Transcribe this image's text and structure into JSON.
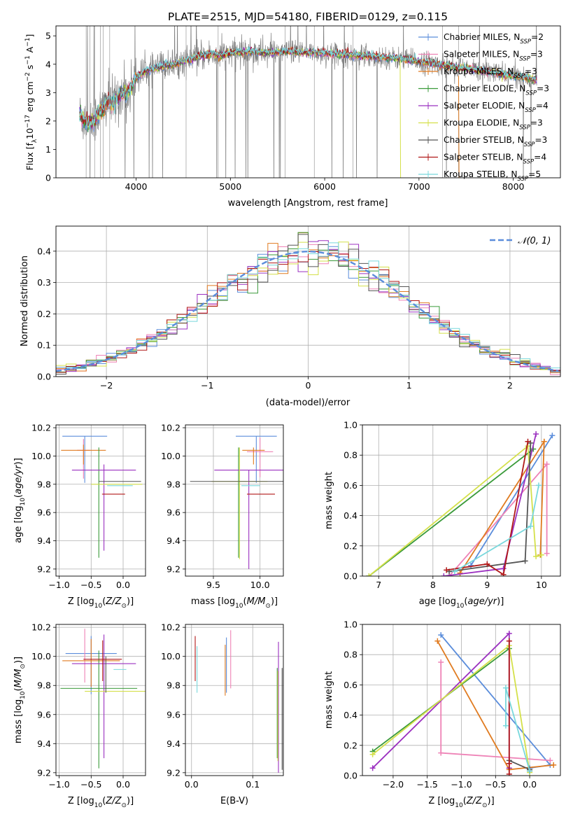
{
  "figure_title": "PLATE=2515, MJD=54180, FIBERID=0129, z=0.115",
  "models": [
    {
      "name": "Chabrier MILES",
      "nssp": "2",
      "color": "#5b8ddb"
    },
    {
      "name": "Salpeter MILES",
      "nssp": "3",
      "color": "#ee82b6"
    },
    {
      "name": "Kroupa MILES",
      "nssp": "3",
      "color": "#e07b20"
    },
    {
      "name": "Chabrier ELODIE",
      "nssp": "3",
      "color": "#3a9a3a"
    },
    {
      "name": "Salpeter ELODIE",
      "nssp": "4",
      "color": "#9b30c0"
    },
    {
      "name": "Kroupa ELODIE",
      "nssp": "3",
      "color": "#d4e04a"
    },
    {
      "name": "Chabrier STELIB",
      "nssp": "3",
      "color": "#555555"
    },
    {
      "name": "Salpeter STELIB",
      "nssp": "4",
      "color": "#b01818"
    },
    {
      "name": "Kroupa STELIB",
      "nssp": "5",
      "color": "#78d8dc"
    }
  ],
  "chart_data": [
    {
      "id": "spectrum",
      "type": "line",
      "xlabel": "wavelength [Angstrom, rest frame]",
      "ylabel": "Flux [f_λ 10^-17 erg cm^-2 s^-1 A^-1]",
      "xlim": [
        3150,
        8500
      ],
      "ylim": [
        0,
        5.35
      ],
      "xticks": [
        4000,
        5000,
        6000,
        7000,
        8000
      ],
      "yticks": [
        0,
        1,
        2,
        3,
        4,
        5
      ],
      "grid": false,
      "legend": "right",
      "data_color": "#808080",
      "data_range": [
        3400,
        8250
      ],
      "model_continuum": {
        "x": [
          3400,
          3450,
          3500,
          3550,
          3600,
          3650,
          3700,
          3750,
          3800,
          3850,
          3900,
          3950,
          4000,
          4100,
          4200,
          4300,
          4400,
          4500,
          4600,
          4700,
          4800,
          4900,
          5000,
          5200,
          5400,
          5600,
          5800,
          6000,
          6200,
          6400,
          6600,
          6800,
          7000,
          7200,
          7400,
          7600,
          7800,
          8000,
          8250
        ],
        "y": [
          2.2,
          2.05,
          1.9,
          2.0,
          2.3,
          2.45,
          2.7,
          2.6,
          2.8,
          3.05,
          2.95,
          3.2,
          3.55,
          3.75,
          3.85,
          3.95,
          4.0,
          4.1,
          4.2,
          4.3,
          4.35,
          4.3,
          4.4,
          4.45,
          4.4,
          4.45,
          4.4,
          4.4,
          4.35,
          4.3,
          4.25,
          4.2,
          4.1,
          4.0,
          3.9,
          3.8,
          3.7,
          3.6,
          3.45
        ]
      }
    },
    {
      "id": "residuals",
      "type": "histogram",
      "xlabel": "(data-model)/error",
      "ylabel": "Normed distribution",
      "xlim": [
        -2.5,
        2.5
      ],
      "ylim": [
        0,
        0.48
      ],
      "xticks": [
        -2,
        -1,
        0,
        1,
        2
      ],
      "yticks": [
        0,
        0.1,
        0.2,
        0.3,
        0.4
      ],
      "grid": true,
      "legend": "top-right",
      "reference": {
        "label": "𝒩(0, 1)",
        "color": "#5b8ddb",
        "mean": 0,
        "sigma": 1
      },
      "bin_width": 0.1
    },
    {
      "id": "z-vs-age",
      "type": "errorbar",
      "xlabel": "Z [log10(Z/Z⊙)]",
      "ylabel": "age  [log10(age/yr)]",
      "xlim": [
        -1.05,
        0.35
      ],
      "ylim": [
        9.15,
        10.22
      ],
      "xticks": [
        -1.0,
        -0.5,
        0.0
      ],
      "yticks": [
        9.2,
        9.4,
        9.6,
        9.8,
        10.0,
        10.2
      ],
      "grid": true,
      "points": [
        {
          "x": -0.6,
          "y": 10.14,
          "xerr": 0.35,
          "yerr_lo": 0.33,
          "yerr_hi": 0.0
        },
        {
          "x": -0.62,
          "y": 10.04,
          "xerr": 0.1,
          "yerr_lo": 0.2,
          "yerr_hi": 0.08
        },
        {
          "x": -0.62,
          "y": 10.04,
          "xerr": 0.35,
          "yerr_lo": 0.1,
          "yerr_hi": 0.04
        },
        {
          "x": -0.38,
          "y": 9.82,
          "xerr": 0.0,
          "yerr_lo": 0.54,
          "yerr_hi": 0.24
        },
        {
          "x": -0.3,
          "y": 9.9,
          "xerr": 0.5,
          "yerr_lo": 0.57,
          "yerr_hi": 0.04
        },
        {
          "x": -0.1,
          "y": 9.8,
          "xerr": 0.4,
          "yerr_lo": 0.0,
          "yerr_hi": 0.0
        },
        {
          "x": -0.05,
          "y": 9.82,
          "xerr": 0.33,
          "yerr_lo": 0.0,
          "yerr_hi": 0.0
        },
        {
          "x": -0.15,
          "y": 9.73,
          "xerr": 0.18,
          "yerr_lo": 0.0,
          "yerr_hi": 0.0
        },
        {
          "x": -0.05,
          "y": 9.79,
          "xerr": 0.2,
          "yerr_lo": 0.0,
          "yerr_hi": 0.0
        }
      ]
    },
    {
      "id": "mass-vs-age",
      "type": "errorbar",
      "xlabel": "mass [log10(M/M⊙)]",
      "ylabel": "",
      "xlim": [
        9.2,
        10.25
      ],
      "ylim": [
        9.15,
        10.22
      ],
      "xticks": [
        9.5,
        10.0
      ],
      "yticks": [
        9.2,
        9.4,
        9.6,
        9.8,
        10.0,
        10.2
      ],
      "grid": true,
      "points": [
        {
          "x": 9.96,
          "y": 10.14,
          "xerr": 0.22,
          "yerr_lo": 0.33,
          "yerr_hi": 0.0
        },
        {
          "x": 10.0,
          "y": 10.03,
          "xerr": 0.14,
          "yerr_lo": 0.18,
          "yerr_hi": 0.1
        },
        {
          "x": 9.93,
          "y": 10.04,
          "xerr": 0.12,
          "yerr_lo": 0.1,
          "yerr_hi": 0.02
        },
        {
          "x": 9.77,
          "y": 9.82,
          "xerr": 0.0,
          "yerr_lo": 0.54,
          "yerr_hi": 0.24
        },
        {
          "x": 9.88,
          "y": 9.9,
          "xerr": 0.37,
          "yerr_lo": 0.7,
          "yerr_hi": 0.0
        },
        {
          "x": 9.78,
          "y": 9.82,
          "xerr": 0.3,
          "yerr_lo": 0.55,
          "yerr_hi": 0.24
        },
        {
          "x": 9.75,
          "y": 9.82,
          "xerr": 0.5,
          "yerr_lo": 0.0,
          "yerr_hi": 0.0
        },
        {
          "x": 10.01,
          "y": 9.73,
          "xerr": 0.15,
          "yerr_lo": 0.0,
          "yerr_hi": 0.0
        },
        {
          "x": 9.9,
          "y": 9.79,
          "xerr": 0.1,
          "yerr_lo": 0.0,
          "yerr_hi": 0.0
        }
      ]
    },
    {
      "id": "age-vs-weight",
      "type": "line",
      "xlabel": "age  [log10(age/yr)]",
      "ylabel": "mass weight",
      "xlim": [
        6.7,
        10.35
      ],
      "ylim": [
        0,
        1.0
      ],
      "xticks": [
        7,
        8,
        9,
        10
      ],
      "yticks": [
        0.0,
        0.2,
        0.4,
        0.6,
        0.8,
        1.0
      ],
      "grid": true,
      "series": [
        {
          "x": [
            8.7,
            10.2
          ],
          "y": [
            0.07,
            0.93
          ]
        },
        {
          "x": [
            8.3,
            10.1,
            10.1
          ],
          "y": [
            0.0,
            0.74,
            0.15
          ]
        },
        {
          "x": [
            8.5,
            10.05,
            9.98
          ],
          "y": [
            0.02,
            0.89,
            0.14
          ]
        },
        {
          "x": [
            6.82,
            9.85
          ],
          "y": [
            0.0,
            0.84
          ]
        },
        {
          "x": [
            8.2,
            9.3,
            9.9
          ],
          "y": [
            0.0,
            0.05,
            0.94
          ]
        },
        {
          "x": [
            6.82,
            9.75,
            9.9,
            10.0
          ],
          "y": [
            0.0,
            0.86,
            0.13,
            0.14
          ]
        },
        {
          "x": [
            8.3,
            9.7,
            9.8
          ],
          "y": [
            0.03,
            0.1,
            0.88
          ]
        },
        {
          "x": [
            8.25,
            9.0,
            9.3,
            9.75
          ],
          "y": [
            0.04,
            0.08,
            0.01,
            0.89
          ]
        },
        {
          "x": [
            8.4,
            9.8,
            9.95
          ],
          "y": [
            0.03,
            0.33,
            0.6
          ]
        }
      ]
    },
    {
      "id": "z-vs-mass",
      "type": "errorbar",
      "xlabel": "Z [log10(Z/Z⊙)]",
      "ylabel": "mass [log10(M/M⊙)]",
      "xlim": [
        -1.05,
        0.35
      ],
      "ylim": [
        9.18,
        10.22
      ],
      "xticks": [
        -1.0,
        -0.5,
        0.0
      ],
      "yticks": [
        9.2,
        9.4,
        9.6,
        9.8,
        10.0,
        10.2
      ],
      "grid": true,
      "points": [
        {
          "x": -0.5,
          "y": 10.02,
          "xerr": 0.4,
          "yerr_lo": 0.28,
          "yerr_hi": 0.12
        },
        {
          "x": -0.6,
          "y": 9.95,
          "xerr": 0.0,
          "yerr_lo": 0.13,
          "yerr_hi": 0.24
        },
        {
          "x": -0.5,
          "y": 9.97,
          "xerr": 0.45,
          "yerr_lo": 0.18,
          "yerr_hi": 0.15
        },
        {
          "x": -0.38,
          "y": 9.78,
          "xerr": 0.6,
          "yerr_lo": 0.55,
          "yerr_hi": 0.26
        },
        {
          "x": -0.3,
          "y": 9.95,
          "xerr": 0.5,
          "yerr_lo": 0.65,
          "yerr_hi": 0.2
        },
        {
          "x": -0.1,
          "y": 9.76,
          "xerr": 0.5,
          "yerr_lo": 0.0,
          "yerr_hi": 0.0
        },
        {
          "x": -0.27,
          "y": 9.8,
          "xerr": 0.0,
          "yerr_lo": 0.05,
          "yerr_hi": 0.2
        },
        {
          "x": -0.32,
          "y": 9.98,
          "xerr": 0.3,
          "yerr_lo": 0.15,
          "yerr_hi": 0.13
        },
        {
          "x": -0.05,
          "y": 9.91,
          "xerr": 0.1,
          "yerr_lo": 0.0,
          "yerr_hi": 0.0
        }
      ]
    },
    {
      "id": "ebv-vs-mass",
      "type": "errorbar",
      "xlabel": "E(B-V)",
      "ylabel": "",
      "xlim": [
        -0.01,
        0.15
      ],
      "ylim": [
        9.18,
        10.22
      ],
      "xticks": [
        0.0,
        0.1
      ],
      "yticks": [
        9.2,
        9.4,
        9.6,
        9.8,
        10.0,
        10.2
      ],
      "grid": true,
      "points": [
        {
          "x": 0.057,
          "y": 10.0,
          "xerr": 0.0,
          "yerr_lo": 0.25,
          "yerr_hi": 0.13
        },
        {
          "x": 0.064,
          "y": 10.0,
          "xerr": 0.0,
          "yerr_lo": 0.22,
          "yerr_hi": 0.18
        },
        {
          "x": 0.055,
          "y": 9.98,
          "xerr": 0.0,
          "yerr_lo": 0.25,
          "yerr_hi": 0.1
        },
        {
          "x": 0.14,
          "y": 9.85,
          "xerr": 0.0,
          "yerr_lo": 0.55,
          "yerr_hi": 0.07
        },
        {
          "x": 0.142,
          "y": 9.8,
          "xerr": 0.0,
          "yerr_lo": 0.6,
          "yerr_hi": 0.3
        },
        {
          "x": 0.141,
          "y": 9.7,
          "xerr": 0.0,
          "yerr_lo": 0.42,
          "yerr_hi": 0.2
        },
        {
          "x": 0.148,
          "y": 9.6,
          "xerr": 0.0,
          "yerr_lo": 0.38,
          "yerr_hi": 0.32
        },
        {
          "x": 0.006,
          "y": 9.99,
          "xerr": 0.0,
          "yerr_lo": 0.16,
          "yerr_hi": 0.15
        },
        {
          "x": 0.009,
          "y": 9.95,
          "xerr": 0.0,
          "yerr_lo": 0.2,
          "yerr_hi": 0.12
        }
      ]
    },
    {
      "id": "z-vs-weight",
      "type": "line",
      "xlabel": "Z [log10(Z/Z⊙)]",
      "ylabel": "mass weight",
      "xlim": [
        -2.45,
        0.45
      ],
      "ylim": [
        0,
        1.0
      ],
      "xticks": [
        -2.0,
        -1.5,
        -1.0,
        -0.5,
        0.0
      ],
      "yticks": [
        0.0,
        0.2,
        0.4,
        0.6,
        0.8,
        1.0
      ],
      "grid": true,
      "series": [
        {
          "x": [
            -1.3,
            0.3,
            0.0
          ],
          "y": [
            0.93,
            0.07,
            0.05
          ]
        },
        {
          "x": [
            -1.3,
            -1.3,
            0.3
          ],
          "y": [
            0.75,
            0.15,
            0.1
          ]
        },
        {
          "x": [
            -1.35,
            -0.3,
            0.35
          ],
          "y": [
            0.89,
            0.04,
            0.07
          ]
        },
        {
          "x": [
            -2.3,
            -0.3
          ],
          "y": [
            0.16,
            0.84
          ]
        },
        {
          "x": [
            -2.3,
            -0.3,
            -0.3
          ],
          "y": [
            0.05,
            0.94,
            0.05
          ]
        },
        {
          "x": [
            -2.3,
            -0.3,
            0.0
          ],
          "y": [
            0.14,
            0.86,
            0.02
          ]
        },
        {
          "x": [
            -0.3,
            0.0,
            0.0
          ],
          "y": [
            0.1,
            0.04,
            0.03
          ]
        },
        {
          "x": [
            -0.3,
            -0.3,
            -0.3
          ],
          "y": [
            0.89,
            0.01,
            0.08
          ]
        },
        {
          "x": [
            -0.35,
            -0.35,
            0.0
          ],
          "y": [
            0.33,
            0.58,
            0.03
          ]
        }
      ]
    }
  ]
}
